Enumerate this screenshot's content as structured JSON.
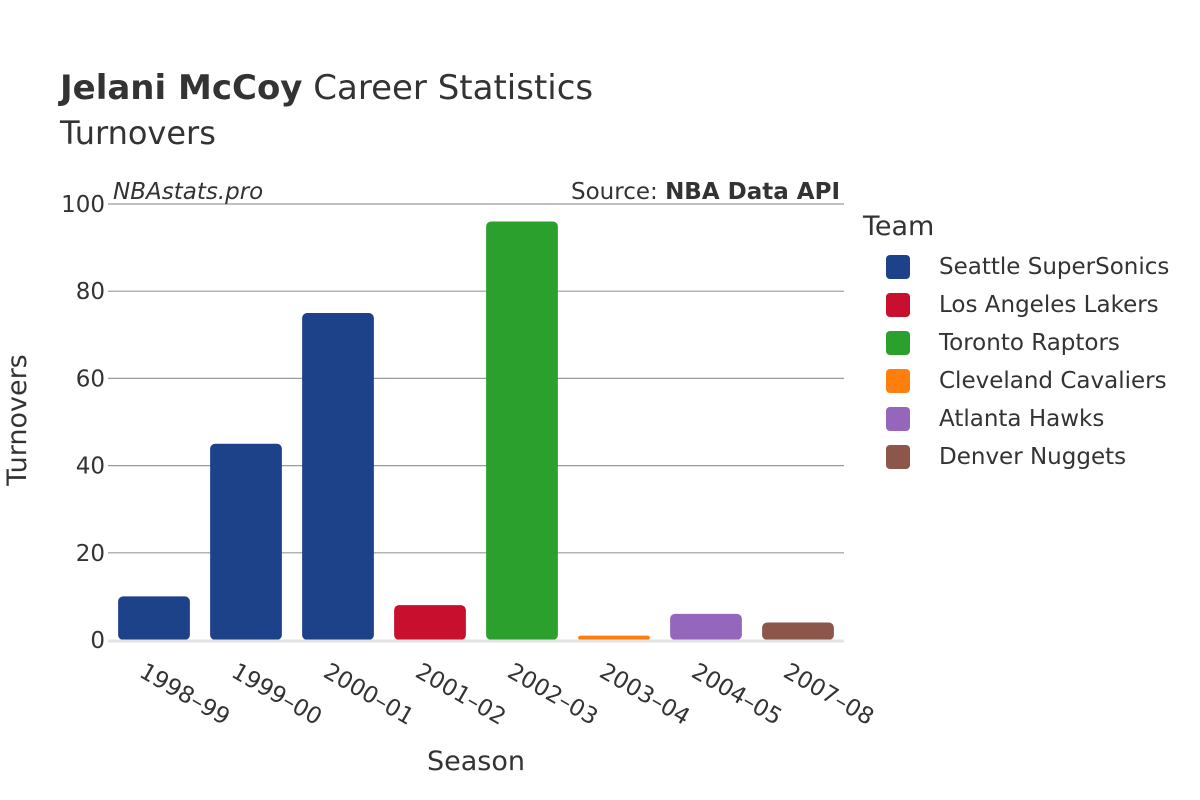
{
  "title": {
    "bold": "Jelani McCoy",
    "rest": "Career Statistics"
  },
  "subtitle": "Turnovers",
  "watermark": "NBAstats.pro",
  "source": {
    "prefix": "Source:",
    "name": "NBA Data API"
  },
  "legend": {
    "title": "Team",
    "items": [
      {
        "label": "Seattle SuperSonics",
        "color": "#1d428a"
      },
      {
        "label": "Los Angeles Lakers",
        "color": "#c8102e"
      },
      {
        "label": "Toronto Raptors",
        "color": "#2ca02c"
      },
      {
        "label": "Cleveland Cavaliers",
        "color": "#ff7f0e"
      },
      {
        "label": "Atlanta Hawks",
        "color": "#9467bd"
      },
      {
        "label": "Denver Nuggets",
        "color": "#8c564b"
      }
    ]
  },
  "chart_data": {
    "type": "bar",
    "title": "Jelani McCoy Career Statistics",
    "subtitle": "Turnovers",
    "xlabel": "Season",
    "ylabel": "Turnovers",
    "ylim": [
      0,
      100
    ],
    "yticks": [
      0,
      20,
      40,
      60,
      80,
      100
    ],
    "grid": true,
    "legend_position": "right",
    "categories": [
      "1998–99",
      "1999–00",
      "2000–01",
      "2001–02",
      "2002–03",
      "2003–04",
      "2004–05",
      "2007–08"
    ],
    "values": [
      10,
      45,
      75,
      8,
      96,
      1,
      6,
      4
    ],
    "teams": [
      "Seattle SuperSonics",
      "Seattle SuperSonics",
      "Seattle SuperSonics",
      "Los Angeles Lakers",
      "Toronto Raptors",
      "Cleveland Cavaliers",
      "Atlanta Hawks",
      "Denver Nuggets"
    ]
  }
}
